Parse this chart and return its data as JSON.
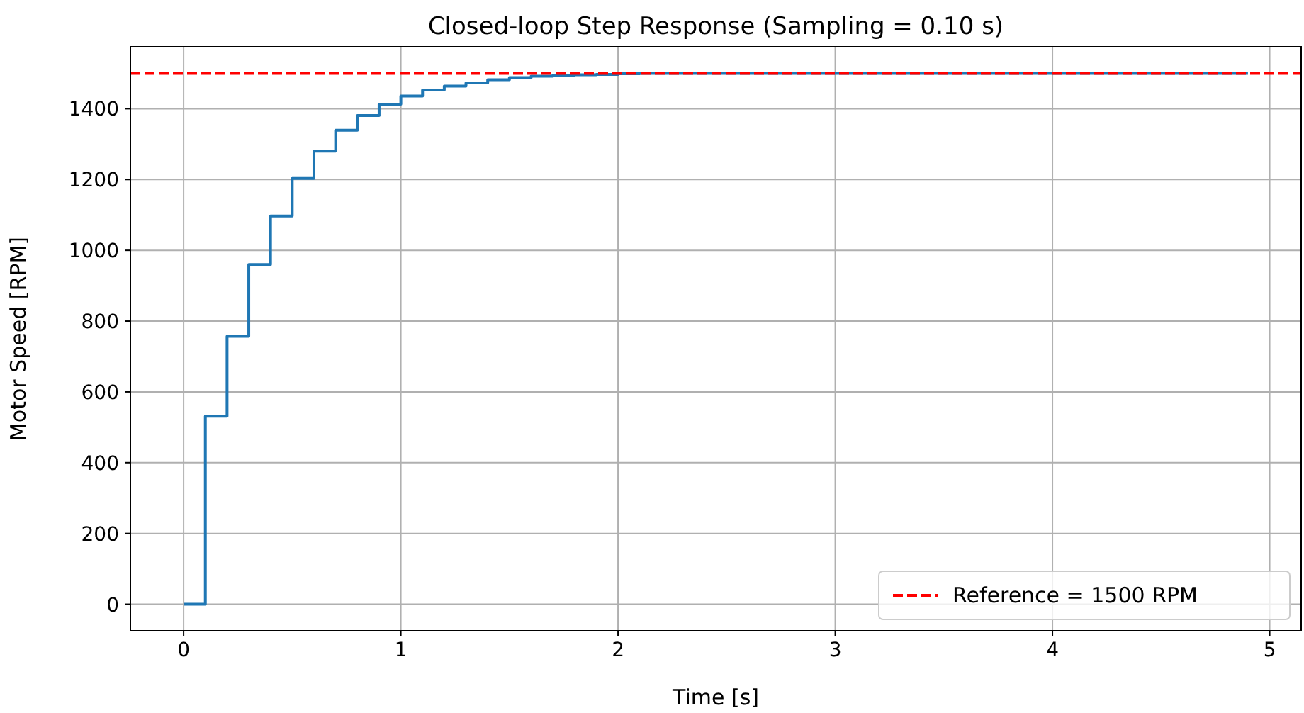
{
  "chart_data": {
    "type": "step",
    "title": "Closed-loop Step Response (Sampling = 0.10 s)",
    "xlabel": "Time [s]",
    "ylabel": "Motor Speed [RPM]",
    "x": [
      0,
      0.1,
      0.2,
      0.3,
      0.4,
      0.5,
      0.6,
      0.7,
      0.8,
      0.9,
      1.0,
      1.1,
      1.2,
      1.3,
      1.4,
      1.5,
      1.6,
      1.7,
      1.8,
      1.9,
      2.0,
      2.1,
      4.9
    ],
    "series": [
      {
        "color": "#1f77b4",
        "values": [
          0,
          531,
          757,
          960,
          1097,
          1203,
          1280,
          1339,
          1381,
          1413,
          1436,
          1453,
          1464,
          1473,
          1482,
          1488,
          1492,
          1495,
          1496,
          1497,
          1499,
          1500,
          1500
        ]
      }
    ],
    "xlim": [
      -0.245,
      5.145
    ],
    "ylim": [
      -75,
      1575
    ],
    "xticks": [
      0,
      1,
      2,
      3,
      4,
      5
    ],
    "yticks": [
      0,
      200,
      400,
      600,
      800,
      1000,
      1200,
      1400
    ],
    "ref_lines": [
      {
        "axis": "y",
        "value": 1500,
        "label": "Reference = 1500 RPM",
        "color": "#ff0000",
        "line_style": "dashed"
      }
    ],
    "grid": true,
    "legend": "bottom right"
  }
}
